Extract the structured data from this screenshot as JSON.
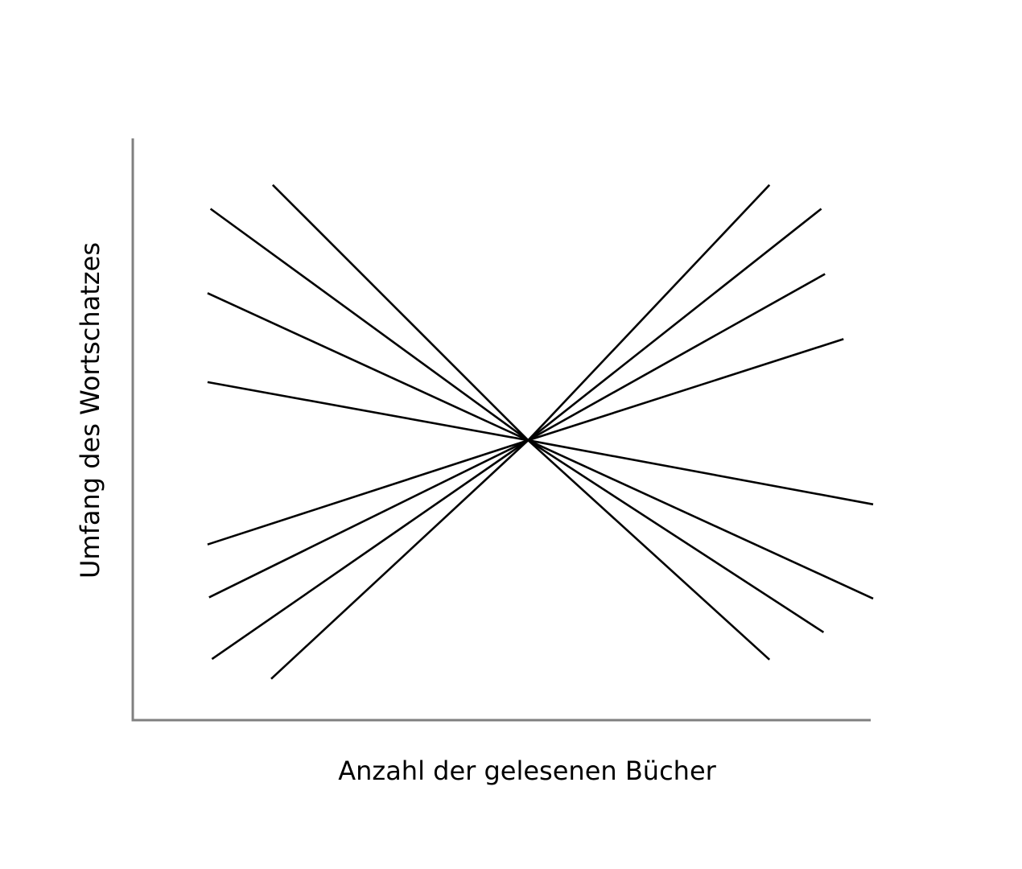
{
  "chart_data": {
    "type": "line",
    "xlabel": "Anzahl der gelesenen Bücher",
    "ylabel": "Umfang des Wortschatzes",
    "xlim": [
      0,
      100
    ],
    "ylim": [
      0,
      100
    ],
    "grid": false,
    "legend": "none",
    "ticks": "none",
    "series": [
      {
        "points": [
          [
            10.5,
            87.9
          ],
          [
            53.4,
            48.1
          ]
        ]
      },
      {
        "points": [
          [
            10.1,
            73.4
          ],
          [
            53.4,
            48.1
          ]
        ]
      },
      {
        "points": [
          [
            10.1,
            58.1
          ],
          [
            53.4,
            48.1
          ]
        ]
      },
      {
        "points": [
          [
            18.9,
            92.0
          ],
          [
            53.4,
            48.1
          ]
        ]
      },
      {
        "points": [
          [
            10.1,
            30.2
          ],
          [
            53.4,
            48.1
          ]
        ]
      },
      {
        "points": [
          [
            10.3,
            21.1
          ],
          [
            53.4,
            48.1
          ]
        ]
      },
      {
        "points": [
          [
            10.7,
            10.5
          ],
          [
            53.4,
            48.1
          ]
        ]
      },
      {
        "points": [
          [
            18.7,
            7.1
          ],
          [
            53.4,
            48.1
          ]
        ]
      },
      {
        "points": [
          [
            86.0,
            92.0
          ],
          [
            53.4,
            48.1
          ]
        ]
      },
      {
        "points": [
          [
            93.0,
            87.9
          ],
          [
            53.4,
            48.1
          ]
        ]
      },
      {
        "points": [
          [
            93.5,
            76.7
          ],
          [
            53.4,
            48.1
          ]
        ]
      },
      {
        "points": [
          [
            96.0,
            65.5
          ],
          [
            53.4,
            48.1
          ]
        ]
      },
      {
        "points": [
          [
            100.0,
            37.1
          ],
          [
            53.4,
            48.1
          ]
        ]
      },
      {
        "points": [
          [
            100.0,
            20.9
          ],
          [
            53.4,
            48.1
          ]
        ]
      },
      {
        "points": [
          [
            93.3,
            15.1
          ],
          [
            53.4,
            48.1
          ]
        ]
      },
      {
        "points": [
          [
            86.0,
            10.4
          ],
          [
            53.4,
            48.1
          ]
        ]
      }
    ]
  }
}
